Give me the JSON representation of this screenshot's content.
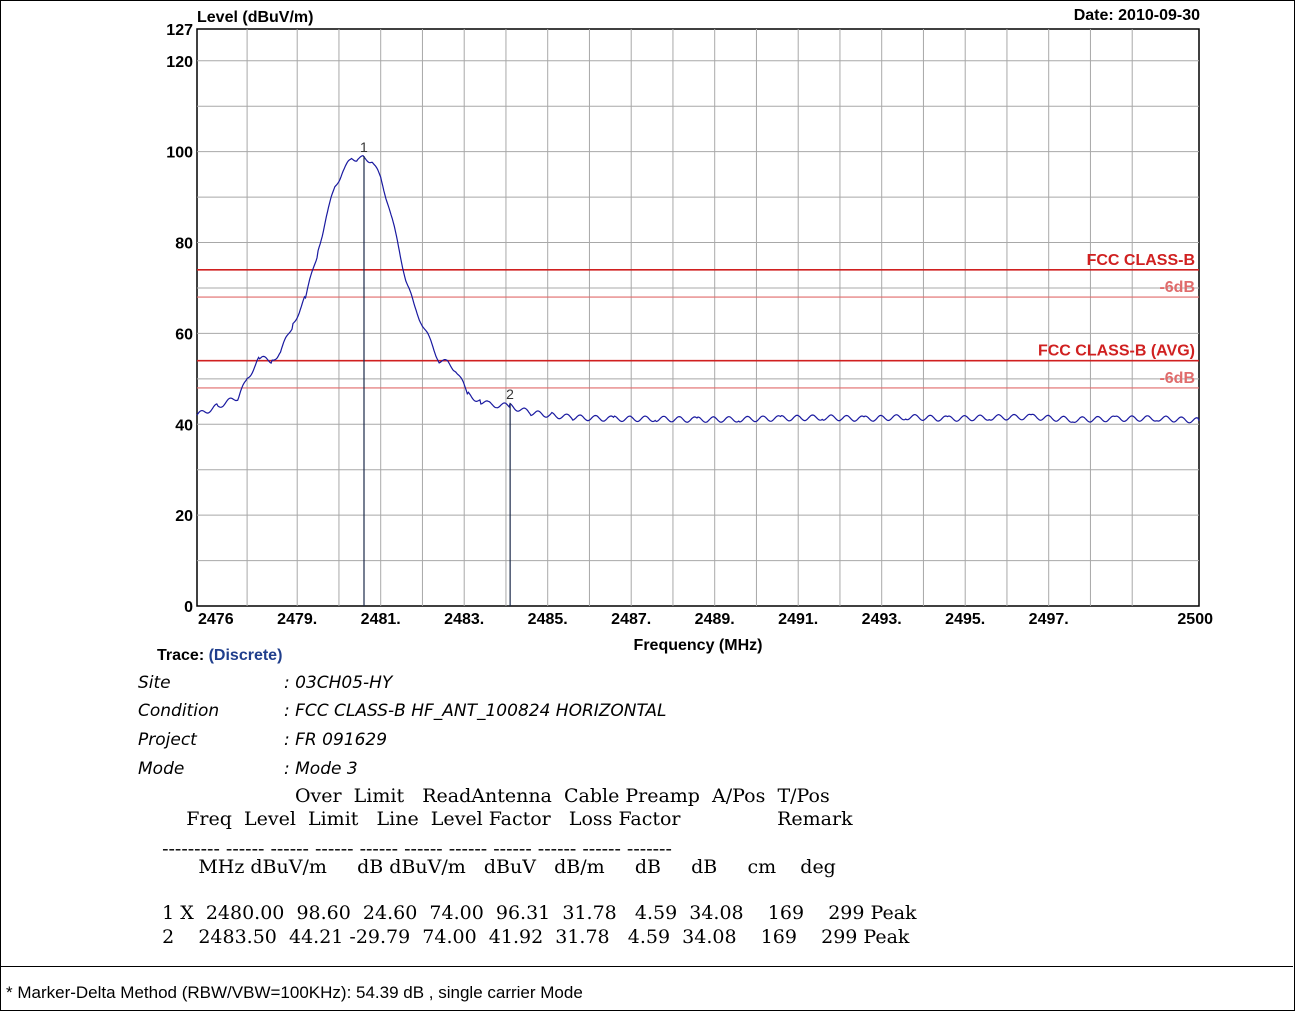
{
  "chart_data": {
    "type": "line",
    "title": "",
    "ylabel": "Level (dBuV/m)",
    "xlabel": "Frequency (MHz)",
    "date": "Date: 2010-09-30",
    "xlim": [
      2476,
      2500
    ],
    "ylim": [
      0,
      127
    ],
    "y_ticks": [
      "0",
      "20",
      "40",
      "60",
      "80",
      "100",
      "120",
      "127"
    ],
    "x_ticks": [
      "2476",
      "2479.",
      "2481.",
      "2483.",
      "2485.",
      "2487.",
      "2489.",
      "2491.",
      "2493.",
      "2495.",
      "2497.",
      "2500"
    ],
    "x_tick_values": [
      2476,
      2478.4,
      2480.4,
      2482.4,
      2484.4,
      2486.4,
      2488.4,
      2490.4,
      2492.4,
      2494.4,
      2496.4,
      2500
    ],
    "grid": true,
    "series": [
      {
        "color": "#1a1aa0",
        "x": [
          2476.0,
          2476.5,
          2477.0,
          2477.2,
          2477.5,
          2477.8,
          2478.0,
          2478.3,
          2478.6,
          2478.9,
          2479.1,
          2479.3,
          2479.5,
          2479.7,
          2479.85,
          2480.0,
          2480.2,
          2480.4,
          2480.6,
          2480.8,
          2481.0,
          2481.2,
          2481.4,
          2481.6,
          2481.8,
          2482.0,
          2482.2,
          2482.5,
          2482.8,
          2483.0,
          2483.2,
          2483.5,
          2484.0,
          2484.5,
          2485.0,
          2486.0,
          2487.0,
          2488.0,
          2489.0,
          2490.0,
          2491.0,
          2492.0,
          2493.0,
          2494.0,
          2495.0,
          2496.0,
          2497.0,
          2498.0,
          2499.0,
          2500.0
        ],
        "y": [
          42.0,
          44.0,
          46.0,
          50.0,
          54.5,
          54.0,
          56.0,
          62.0,
          68.0,
          78.0,
          86.0,
          92.0,
          96.0,
          98.2,
          98.6,
          98.5,
          98.0,
          94.0,
          88.0,
          80.0,
          72.0,
          66.0,
          62.0,
          58.0,
          54.0,
          53.5,
          52.0,
          46.5,
          45.0,
          44.4,
          44.2,
          44.0,
          42.5,
          42.0,
          41.5,
          41.2,
          41.2,
          41.0,
          41.1,
          41.3,
          41.5,
          41.2,
          41.6,
          41.2,
          41.5,
          41.6,
          41.0,
          41.2,
          41.3,
          40.8
        ]
      }
    ],
    "limit_lines": [
      {
        "name": "FCC CLASS-B",
        "value": 74,
        "color": "#d02020",
        "kind": "limit"
      },
      {
        "name": "-6dB",
        "value": 68,
        "color": "#e06b6b",
        "kind": "margin"
      },
      {
        "name": "FCC CLASS-B (AVG)",
        "value": 54,
        "color": "#d02020",
        "kind": "limit"
      },
      {
        "name": "-6dB",
        "value": 48,
        "color": "#e06b6b",
        "kind": "margin"
      }
    ],
    "markers": [
      {
        "label": "1",
        "x": 2480.0,
        "y": 98.6
      },
      {
        "label": "2",
        "x": 2483.5,
        "y": 44.21
      }
    ]
  },
  "trace": {
    "label": "Trace:",
    "value": "(Discrete)"
  },
  "info": [
    {
      "label": "Site",
      "value": ": 03CH05-HY"
    },
    {
      "label": "Condition",
      "value": ": FCC CLASS-B HF_ANT_100824 HORIZONTAL"
    },
    {
      "label": "Project",
      "value": ": FR 091629"
    },
    {
      "label": "Mode",
      "value": ": Mode 3"
    }
  ],
  "table": {
    "header_line1": "                        Over  Limit   ReadAntenna  Cable Preamp  A/Pos  T/Pos",
    "header_line2": "      Freq  Level  Limit   Line  Level Factor   Loss Factor                Remark",
    "dashes": "  --------- ------ ------ ------ ------ ------ ------ ------ ------ ------ -------",
    "units": "        MHz dBuV/m     dB dBuV/m   dBuV   dB/m     dB     dB     cm    deg",
    "rows": [
      "  1 X  2480.00  98.60  24.60  74.00  96.31  31.78   4.59  34.08    169    299 Peak",
      "  2    2483.50  44.21 -29.79  74.00  41.92  31.78   4.59  34.08    169    299 Peak"
    ]
  },
  "footnote": "* Marker-Delta Method (RBW/VBW=100KHz): 54.39 dB , single carrier Mode"
}
